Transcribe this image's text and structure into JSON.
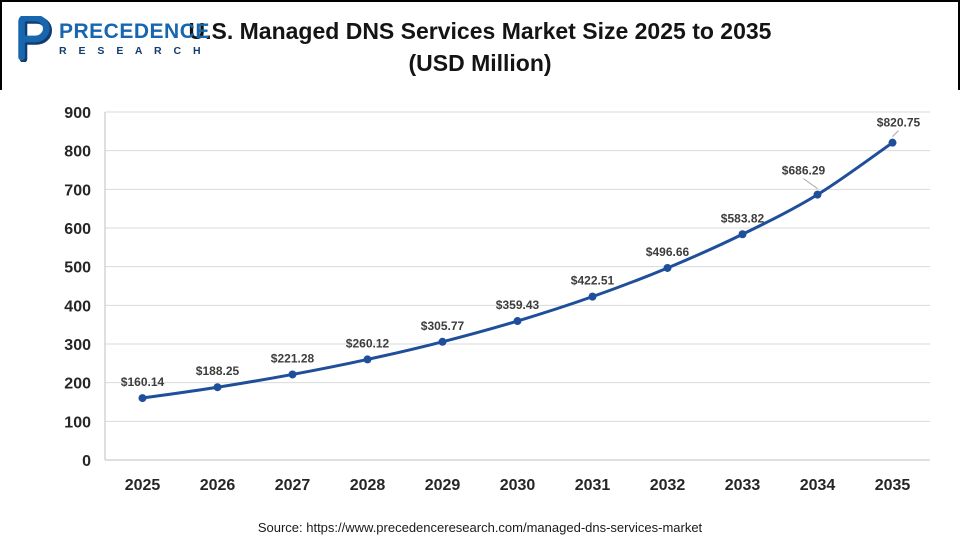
{
  "header": {
    "logo": {
      "line1": "PRECEDENCE",
      "line2": "R E S E A R C H",
      "brand_blue": "#1766ae",
      "brand_navy": "#123c70"
    },
    "title_line1": "U.S. Managed DNS Services Market Size 2025 to 2035",
    "title_line2": "(USD Million)"
  },
  "footer": {
    "source": "Source: https://www.precedenceresearch.com/managed-dns-services-market"
  },
  "chart_data": {
    "type": "line",
    "title": "U.S. Managed DNS Services Market Size 2025 to 2035 (USD Million)",
    "categories": [
      "2025",
      "2026",
      "2027",
      "2028",
      "2029",
      "2030",
      "2031",
      "2032",
      "2033",
      "2034",
      "2035"
    ],
    "values": [
      160.14,
      188.25,
      221.28,
      260.12,
      305.77,
      359.43,
      422.51,
      496.66,
      583.82,
      686.29,
      820.75
    ],
    "point_labels": [
      "$160.14",
      "$188.25",
      "$221.28",
      "$260.12",
      "$305.77",
      "$359.43",
      "$422.51",
      "$496.66",
      "$583.82",
      "$686.29",
      "$820.75"
    ],
    "ylim": [
      0,
      900
    ],
    "ytick_step": 100,
    "grid": true,
    "legend_position": "none",
    "line_color": "#1f4e9b",
    "marker_color": "#1f4e9b",
    "label_color": "#3d3d3d",
    "axis_text_color": "#262626",
    "grid_color": "#d9d9d9",
    "axis_line_color": "#bfbfbf",
    "leader_line_color": "#a6a6a6"
  }
}
